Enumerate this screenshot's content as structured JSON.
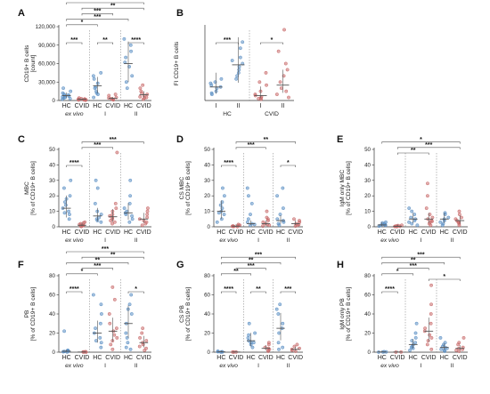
{
  "colors": {
    "hc": "#5b8fc4",
    "cvid": "#c96a6a",
    "median": "#555555",
    "axis": "#333333"
  },
  "chart_data": [
    {
      "type": "scatter",
      "label": "A",
      "ylabel": [
        "CD19+ B cells",
        "[count]"
      ],
      "ylim": [
        0,
        120000
      ],
      "yticks": [
        0,
        30000,
        60000,
        90000,
        120000
      ],
      "ytick_labels": [
        "0",
        "30,000",
        "60,000",
        "90,000",
        "120,000"
      ],
      "categories": [
        "HC",
        "CVID",
        "HC",
        "CVID",
        "HC",
        "CVID"
      ],
      "groups": [
        "ex vivo",
        "I",
        "II"
      ],
      "points": [
        [
          2000,
          4000,
          6000,
          8000,
          10000,
          12000,
          15000,
          20000,
          5000,
          3000,
          9000,
          7000
        ],
        [
          500,
          1000,
          2000,
          3000,
          1500,
          4000,
          2500,
          800,
          1200
        ],
        [
          5000,
          10000,
          15000,
          22000,
          28000,
          35000,
          40000,
          45000,
          20000,
          12000
        ],
        [
          1000,
          2000,
          3000,
          5000,
          8000,
          10000,
          4000,
          1500
        ],
        [
          20000,
          30000,
          40000,
          55000,
          62000,
          70000,
          80000,
          90000,
          100000
        ],
        [
          2000,
          5000,
          8000,
          10000,
          12000,
          15000,
          20000,
          25000,
          6000,
          4000
        ]
      ],
      "medians": [
        8000,
        2000,
        24000,
        3500,
        60000,
        9500
      ],
      "sig": [
        {
          "a": 0,
          "b": 1,
          "t": "***"
        },
        {
          "a": 2,
          "b": 3,
          "t": "**"
        },
        {
          "a": 4,
          "b": 5,
          "t": "****"
        },
        {
          "a": 0,
          "b": 2,
          "t": "*"
        },
        {
          "a": 0,
          "b": 4,
          "t": "***"
        },
        {
          "a": 1,
          "b": 3,
          "t": "***"
        },
        {
          "a": 1,
          "b": 5,
          "t": "**"
        },
        {
          "a": 0,
          "b": 5,
          "t": "***"
        }
      ]
    },
    {
      "type": "scatter",
      "label": "B",
      "ylabel": [
        "FI CD19+ B cells"
      ],
      "ylim": [
        0,
        12
      ],
      "yticks": [],
      "ytick_labels": [],
      "categories": [
        "I",
        "II",
        "I",
        "II"
      ],
      "groups": [
        "HC",
        "CVID"
      ],
      "points": [
        [
          1.0,
          1.5,
          2.0,
          2.5,
          3.0,
          3.5,
          1.2,
          2.8,
          2.2
        ],
        [
          3.5,
          4.5,
          5.5,
          6.0,
          6.5,
          7.0,
          8.5,
          9.5,
          5.0,
          4.0
        ],
        [
          0.2,
          0.4,
          0.6,
          1.0,
          1.5,
          2.5,
          3.0,
          4.5,
          0.8,
          0.3
        ],
        [
          0.5,
          1.0,
          2.0,
          3.0,
          4.0,
          5.0,
          6.0,
          8.0,
          11.5,
          1.5
        ]
      ],
      "medians": [
        2.2,
        5.8,
        0.8,
        2.5
      ],
      "sig": [
        {
          "a": 0,
          "b": 1,
          "t": "***"
        },
        {
          "a": 2,
          "b": 3,
          "t": "*"
        }
      ]
    },
    {
      "type": "scatter",
      "label": "C",
      "ylabel": [
        "MBC",
        "[% of CD19+ B cells]"
      ],
      "ylim": [
        0,
        50
      ],
      "yticks": [
        0,
        10,
        20,
        30,
        40,
        50
      ],
      "ytick_labels": [
        "0",
        "10",
        "20",
        "30",
        "40",
        "50"
      ],
      "categories": [
        "HC",
        "CVID",
        "HC",
        "CVID",
        "HC",
        "CVID"
      ],
      "groups": [
        "ex vivo",
        "I",
        "II"
      ],
      "points": [
        [
          5,
          8,
          10,
          12,
          14,
          16,
          18,
          20,
          25,
          30,
          9
        ],
        [
          0.2,
          0.5,
          1,
          1.5,
          2,
          2.5,
          3,
          1,
          0.8
        ],
        [
          3,
          5,
          8,
          10,
          15,
          25,
          30,
          6,
          4
        ],
        [
          2,
          4,
          5,
          6,
          8,
          10,
          12,
          15,
          48,
          7,
          3
        ],
        [
          3,
          5,
          7,
          9,
          10,
          12,
          15,
          20,
          30,
          8
        ],
        [
          1,
          2,
          4,
          5,
          6,
          8,
          10,
          12,
          3
        ]
      ],
      "medians": [
        12,
        1,
        7,
        6.5,
        9,
        5
      ],
      "sig": [
        {
          "a": 0,
          "b": 1,
          "t": "****"
        },
        {
          "a": 1,
          "b": 3,
          "t": "***"
        },
        {
          "a": 1,
          "b": 5,
          "t": "***"
        }
      ]
    },
    {
      "type": "scatter",
      "label": "D",
      "ylabel": [
        "CS MBC",
        "[% of CD19+ B cells]"
      ],
      "ylim": [
        0,
        50
      ],
      "yticks": [
        0,
        10,
        20,
        30,
        40,
        50
      ],
      "ytick_labels": [
        "0",
        "10",
        "20",
        "30",
        "40",
        "50"
      ],
      "categories": [
        "HC",
        "CVID",
        "HC",
        "CVID",
        "HC",
        "CVID"
      ],
      "groups": [
        "ex vivo",
        "I",
        "II"
      ],
      "points": [
        [
          5,
          8,
          10,
          12,
          14,
          16,
          20,
          25,
          9,
          3
        ],
        [
          0.1,
          0.3,
          0.5,
          0.8,
          1,
          1.5,
          0.2,
          0.4
        ],
        [
          1,
          2,
          3,
          5,
          8,
          15,
          20,
          25,
          1.5
        ],
        [
          0.5,
          1,
          2,
          3,
          4,
          5,
          6,
          10,
          1.5
        ],
        [
          1,
          2,
          3,
          5,
          8,
          12,
          20,
          25,
          4
        ],
        [
          0.5,
          1,
          2,
          3,
          4,
          5,
          1.5
        ]
      ],
      "medians": [
        10,
        0.4,
        2,
        2,
        4,
        2
      ],
      "sig": [
        {
          "a": 0,
          "b": 1,
          "t": "****"
        },
        {
          "a": 4,
          "b": 5,
          "t": "*"
        },
        {
          "a": 1,
          "b": 3,
          "t": "***"
        },
        {
          "a": 1,
          "b": 5,
          "t": "**"
        }
      ]
    },
    {
      "type": "scatter",
      "label": "E",
      "ylabel": [
        "IgM only MBC",
        "[% of CD19+ B cells]"
      ],
      "ylim": [
        0,
        50
      ],
      "yticks": [
        0,
        10,
        20,
        30,
        40,
        50
      ],
      "ytick_labels": [
        "0",
        "10",
        "20",
        "30",
        "40",
        "50"
      ],
      "categories": [
        "HC",
        "CVID",
        "HC",
        "CVID",
        "HC",
        "CVID"
      ],
      "groups": [
        "ex vivo",
        "I",
        "II"
      ],
      "points": [
        [
          0.5,
          1,
          1.5,
          2,
          2.5,
          3,
          1.2,
          0.8
        ],
        [
          0.1,
          0.2,
          0.3,
          0.5,
          0.8,
          1,
          0.4
        ],
        [
          1,
          2,
          3,
          5,
          6,
          8,
          10,
          12,
          4
        ],
        [
          1,
          2,
          3,
          4,
          5,
          6,
          8,
          12,
          20,
          28,
          3.5
        ],
        [
          1,
          2,
          3,
          5,
          6,
          8,
          9,
          4
        ],
        [
          1,
          2,
          3,
          4,
          5,
          6,
          8,
          10,
          3
        ]
      ],
      "medians": [
        1.2,
        0.3,
        5,
        5,
        5,
        4
      ],
      "sig": [
        {
          "a": 1,
          "b": 3,
          "t": "**"
        },
        {
          "a": 1,
          "b": 5,
          "t": "***"
        },
        {
          "a": 0,
          "b": 5,
          "t": "*"
        }
      ]
    },
    {
      "type": "scatter",
      "label": "F",
      "ylabel": [
        "PB",
        "[% of CD19+ B cells]"
      ],
      "ylim": [
        0,
        80
      ],
      "yticks": [
        0,
        20,
        40,
        60,
        80
      ],
      "ytick_labels": [
        "0",
        "20",
        "40",
        "60",
        "80"
      ],
      "categories": [
        "HC",
        "CVID",
        "HC",
        "CVID",
        "HC",
        "CVID"
      ],
      "groups": [
        "ex vivo",
        "I",
        "II"
      ],
      "points": [
        [
          0.2,
          0.5,
          1,
          1.5,
          2,
          22,
          0.8
        ],
        [
          0.1,
          0.2,
          0.3,
          0.5,
          0.2
        ],
        [
          5,
          10,
          15,
          20,
          25,
          30,
          40,
          50,
          60,
          12
        ],
        [
          3,
          8,
          12,
          18,
          22,
          25,
          30,
          40,
          55,
          68,
          15
        ],
        [
          3,
          5,
          10,
          15,
          20,
          30,
          40,
          45,
          50,
          60
        ],
        [
          2,
          4,
          8,
          10,
          12,
          15,
          20,
          25,
          6
        ]
      ],
      "medians": [
        1,
        0.2,
        20,
        22,
        30,
        10
      ],
      "sig": [
        {
          "a": 0,
          "b": 1,
          "t": "****"
        },
        {
          "a": 4,
          "b": 5,
          "t": "*"
        },
        {
          "a": 0,
          "b": 2,
          "t": "*"
        },
        {
          "a": 1,
          "b": 3,
          "t": "***"
        },
        {
          "a": 0,
          "b": 4,
          "t": "**"
        },
        {
          "a": 1,
          "b": 5,
          "t": "**"
        },
        {
          "a": 0,
          "b": 5,
          "t": "***"
        }
      ]
    },
    {
      "type": "scatter",
      "label": "G",
      "ylabel": [
        "CS PB",
        "[% of CD19+ B cells]"
      ],
      "ylim": [
        0,
        80
      ],
      "yticks": [
        0,
        20,
        40,
        60,
        80
      ],
      "ytick_labels": [
        "0",
        "20",
        "40",
        "60",
        "80"
      ],
      "categories": [
        "HC",
        "CVID",
        "HC",
        "CVID",
        "HC",
        "CVID"
      ],
      "groups": [
        "ex vivo",
        "I",
        "II"
      ],
      "points": [
        [
          0.1,
          0.3,
          0.5,
          1,
          0.4
        ],
        [
          0.1,
          0.2,
          0.2
        ],
        [
          5,
          8,
          10,
          12,
          15,
          18,
          20,
          30,
          10
        ],
        [
          1,
          2,
          3,
          5,
          8,
          10,
          4
        ],
        [
          3,
          5,
          10,
          20,
          25,
          30,
          40,
          45,
          50
        ],
        [
          1,
          2,
          4,
          6,
          8,
          3
        ]
      ],
      "medians": [
        0.4,
        0.2,
        12,
        4,
        25,
        3
      ],
      "sig": [
        {
          "a": 0,
          "b": 1,
          "t": "****"
        },
        {
          "a": 2,
          "b": 3,
          "t": "**"
        },
        {
          "a": 4,
          "b": 5,
          "t": "***"
        },
        {
          "a": 0,
          "b": 2,
          "t": "**"
        },
        {
          "a": 1,
          "b": 3,
          "t": "***"
        },
        {
          "a": 0,
          "b": 4,
          "t": "**"
        },
        {
          "a": 0,
          "b": 5,
          "t": "***"
        }
      ]
    },
    {
      "type": "scatter",
      "label": "H",
      "ylabel": [
        "IgM only PB",
        "[% of CD19+ B cells]"
      ],
      "ylim": [
        0,
        80
      ],
      "yticks": [
        0,
        20,
        40,
        60,
        80
      ],
      "ytick_labels": [
        "0",
        "20",
        "40",
        "60",
        "80"
      ],
      "categories": [
        "HC",
        "CVID",
        "HC",
        "CVID",
        "HC",
        "CVID"
      ],
      "groups": [
        "ex vivo",
        "I",
        "II"
      ],
      "points": [
        [
          0.1,
          0.3,
          0.5,
          0.2
        ],
        [
          0.1,
          0.2
        ],
        [
          2,
          4,
          6,
          8,
          10,
          12,
          15,
          20,
          30,
          5
        ],
        [
          3,
          8,
          12,
          18,
          22,
          30,
          40,
          50,
          70,
          15,
          25
        ],
        [
          1,
          2,
          3,
          5,
          6,
          8,
          10,
          15,
          4
        ],
        [
          1,
          2,
          4,
          5,
          8,
          10,
          15,
          3
        ]
      ],
      "medians": [
        0.3,
        0.2,
        8,
        22,
        5,
        4
      ],
      "sig": [
        {
          "a": 0,
          "b": 1,
          "t": "****"
        },
        {
          "a": 0,
          "b": 2,
          "t": "*"
        },
        {
          "a": 1,
          "b": 3,
          "t": "***"
        },
        {
          "a": 3,
          "b": 5,
          "t": "*"
        },
        {
          "a": 0,
          "b": 4,
          "t": "**"
        },
        {
          "a": 0,
          "b": 5,
          "t": "***"
        }
      ]
    }
  ]
}
